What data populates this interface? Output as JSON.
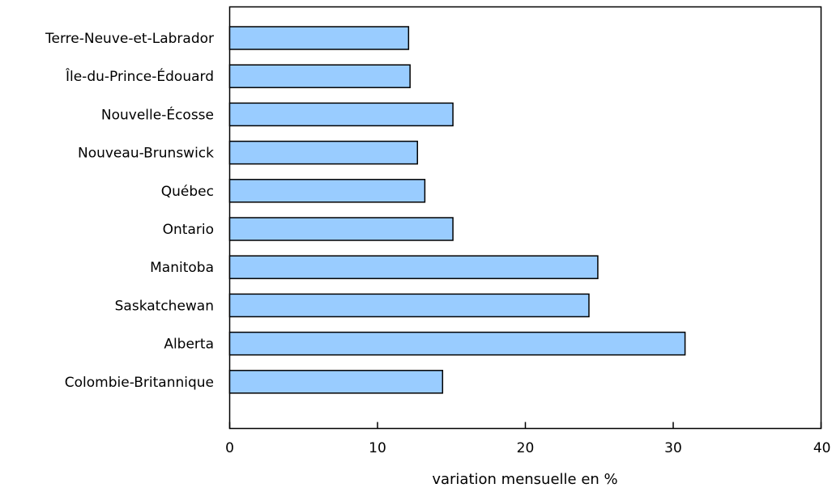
{
  "chart_data": {
    "type": "bar",
    "orientation": "horizontal",
    "categories": [
      "Terre-Neuve-et-Labrador",
      "Île-du-Prince-Édouard",
      "Nouvelle-Écosse",
      "Nouveau-Brunswick",
      "Québec",
      "Ontario",
      "Manitoba",
      "Saskatchewan",
      "Alberta",
      "Colombie-Britannique"
    ],
    "values": [
      12.1,
      12.2,
      15.1,
      12.7,
      13.2,
      15.1,
      24.9,
      24.3,
      30.8,
      14.4
    ],
    "xlabel": "variation mensuelle en %",
    "ylabel": "",
    "xlim": [
      0,
      40
    ],
    "xticks": [
      0,
      10,
      20,
      30,
      40
    ],
    "grid": false,
    "legend": "none",
    "bar_color": "#99ccff",
    "bar_stroke": "#000000"
  }
}
